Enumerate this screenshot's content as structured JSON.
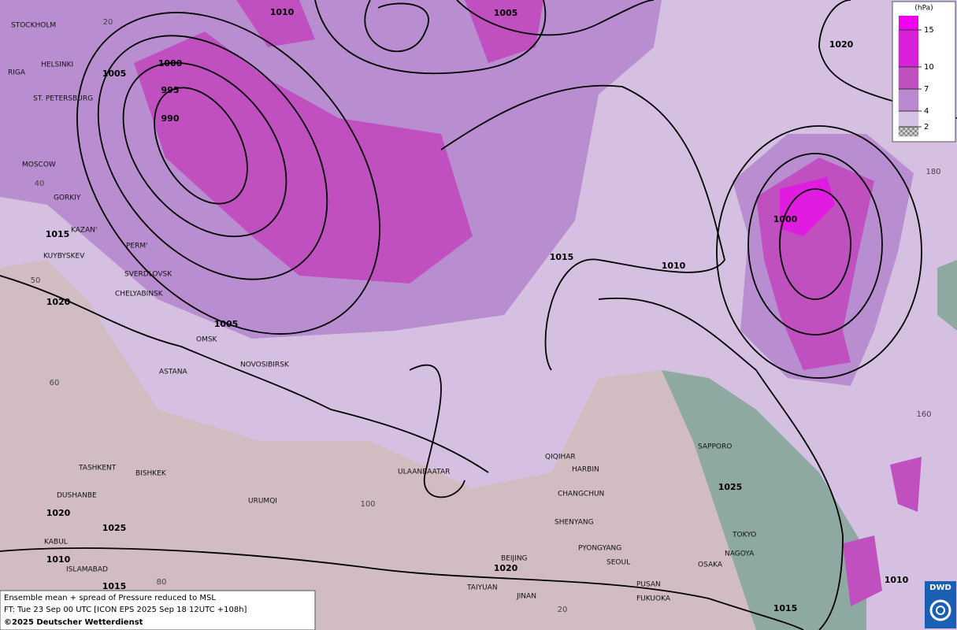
{
  "map": {
    "cities": [
      "STOCKHOLM",
      "HELSINKI",
      "RIGA",
      "ST. PETERSBURG",
      "MOSCOW",
      "GORKIY",
      "KAZAN'",
      "PERM'",
      "KUYBYSKEV",
      "SVERDLOVSK",
      "CHELYABINSK",
      "OMSK",
      "ASTANA",
      "NOVOSIBIRSK",
      "TASHKENT",
      "BISHKEK",
      "DUSHANBE",
      "URUMQI",
      "KABUL",
      "ISLAMABAD",
      "ULAANBAATAR",
      "QIQIHAR",
      "HARBIN",
      "CHANGCHUN",
      "SHENYANG",
      "BEIJING",
      "PYONGYANG",
      "SEOUL",
      "TAIYUAN",
      "JINAN",
      "PUSAN",
      "FUKUOKA",
      "OSAKA",
      "NAGOYA",
      "TOKYO",
      "SAPPORO"
    ],
    "isobar_labels": [
      "1010",
      "1005",
      "1020",
      "1000",
      "1005",
      "995",
      "990",
      "1000",
      "1015",
      "1015",
      "1010",
      "1020",
      "1005",
      "1025",
      "1020",
      "1025",
      "1010",
      "1020",
      "1015",
      "1010",
      "1015"
    ],
    "grid_labels": [
      "20",
      "40",
      "50",
      "60",
      "80",
      "100",
      "180",
      "160",
      "20"
    ]
  },
  "legend": {
    "unit": "(hPa)",
    "levels": [
      {
        "label": "15",
        "color": "#d820d8"
      },
      {
        "label": "10",
        "color": "#c050c0"
      },
      {
        "label": "7",
        "color": "#b888d0"
      },
      {
        "label": "4",
        "color": "#d8c2e4"
      },
      {
        "label": "2",
        "color": "#9a9a9a"
      }
    ]
  },
  "caption": {
    "line1": "Ensemble mean + spread of Pressure reduced to MSL",
    "line2": "FT: Tue 23 Sep 00 UTC [ICON EPS 2025 Sep 18 12UTC +108h]",
    "line3": "©2025 Deutscher Wetterdienst"
  },
  "logo": "DWD"
}
